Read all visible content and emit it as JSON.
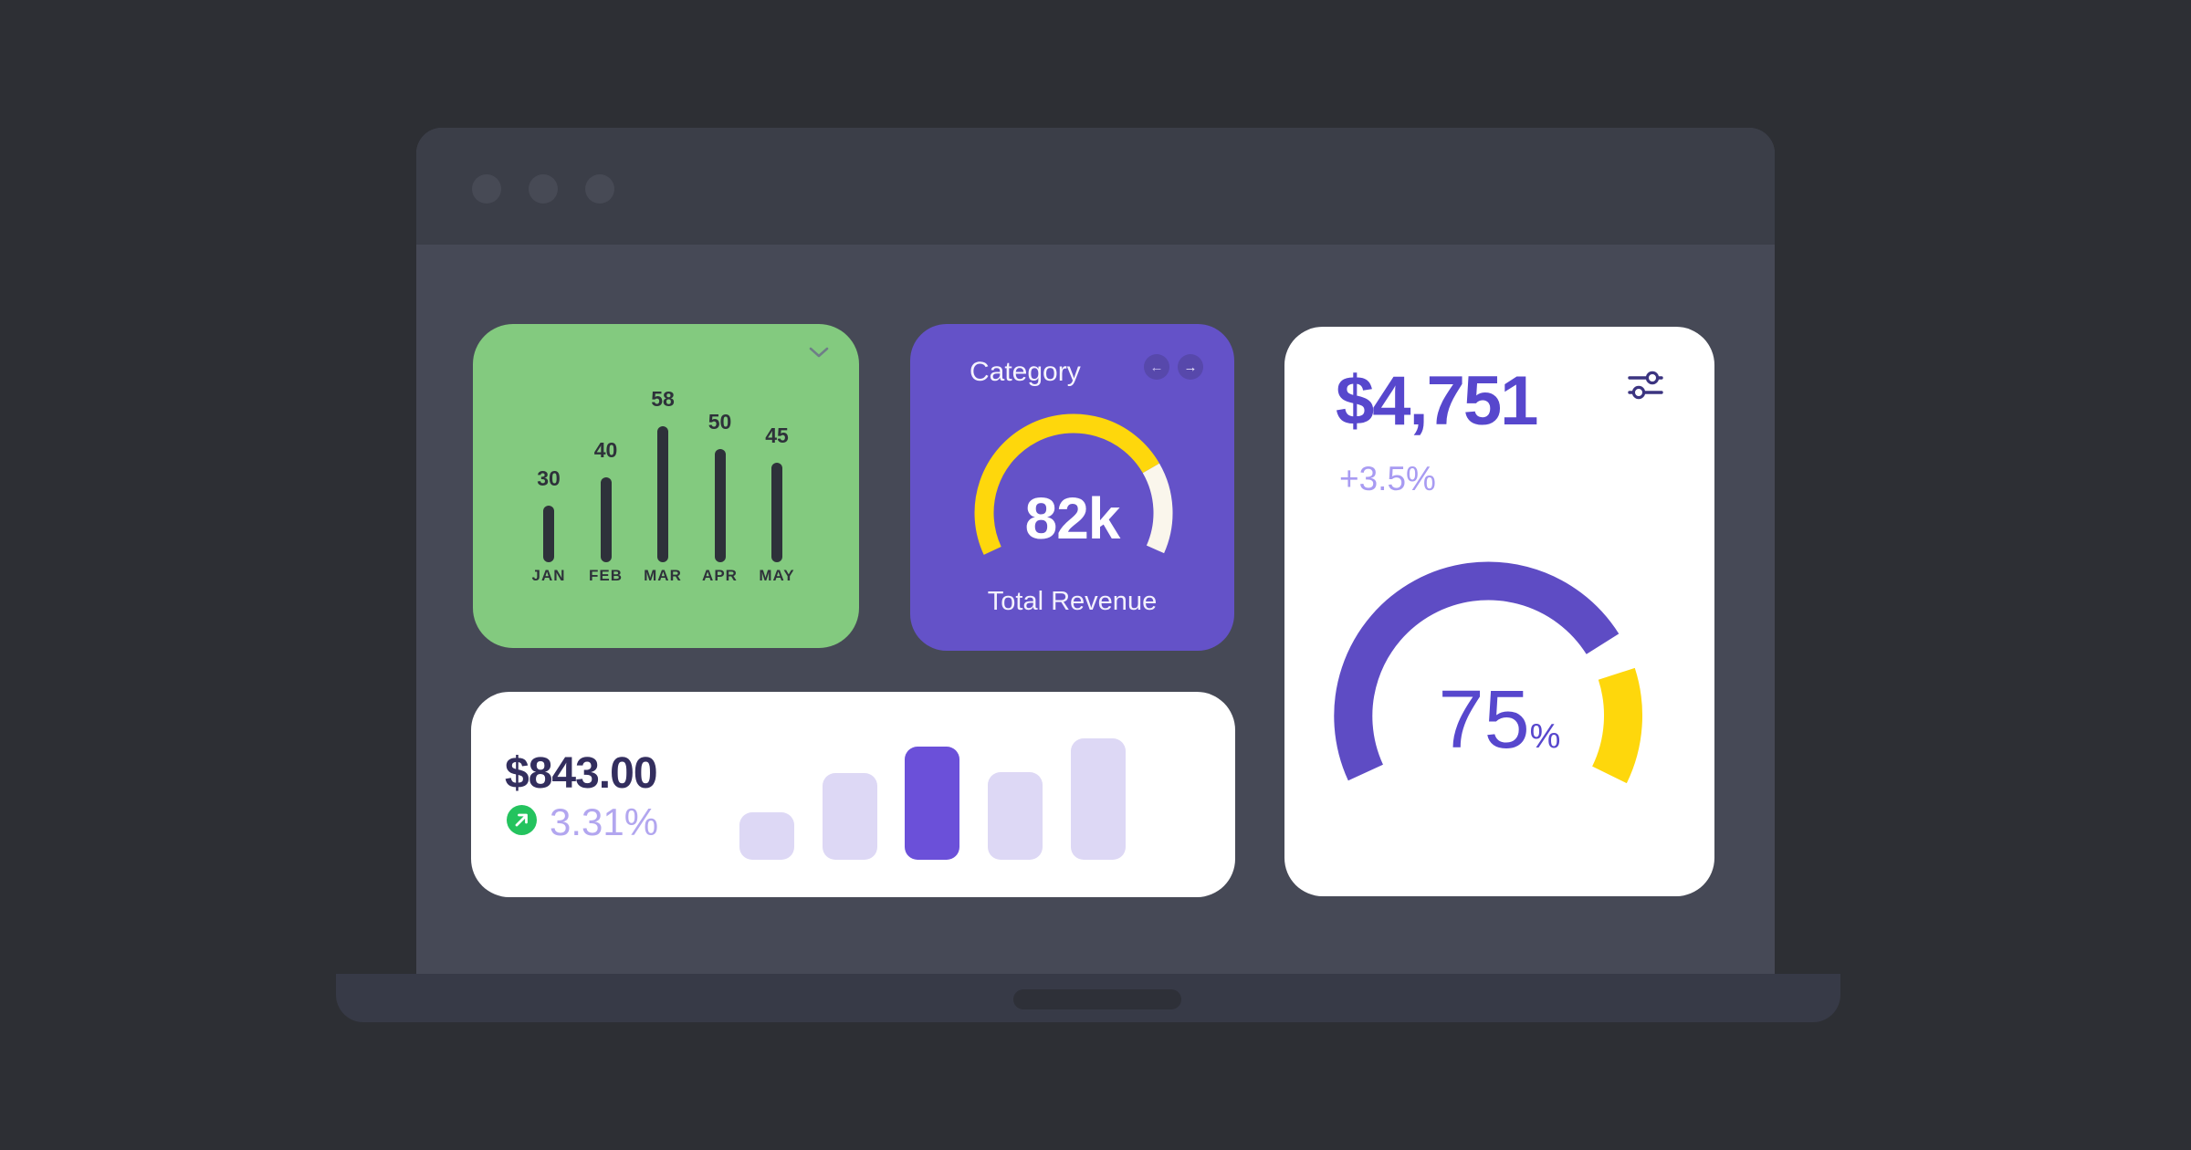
{
  "window": {
    "dots": [
      "window-dot",
      "window-dot",
      "window-dot"
    ]
  },
  "colors": {
    "page_bg": "#2d2f34",
    "screen_body": "#464956",
    "titlebar": "#3b3e48",
    "green_card": "#83ca7f",
    "purple_card": "#6452c8",
    "ink_dark": "#2e313a",
    "accent_purple": "#5747cd",
    "accent_purple_light": "#a89bf2",
    "yellow": "#fed70c",
    "cream": "#faf6ec",
    "green_badge": "#24c35e"
  },
  "cards": {
    "monthly_bars": {
      "chart": {
        "type": "bar",
        "categories": [
          "JAN",
          "FEB",
          "MAR",
          "APR",
          "MAY"
        ],
        "values": [
          30,
          40,
          58,
          50,
          45
        ],
        "bar_color": "#2e313a",
        "grid": false
      }
    },
    "category_gauge": {
      "title": "Category",
      "prev_label": "←",
      "next_label": "→",
      "value": "82k",
      "caption": "Total Revenue",
      "gauge": {
        "type": "gauge",
        "span_degrees": [
          205,
          -24
        ],
        "segments": [
          {
            "from": 205,
            "to": 30,
            "color": "#fed70c"
          },
          {
            "from": 30,
            "to": -24,
            "color": "#faf6ec"
          }
        ]
      }
    },
    "revenue_gauge": {
      "amount": "$4,751",
      "change": "+3.5%",
      "percent": "75",
      "percent_sign": "%",
      "gauge": {
        "type": "gauge",
        "span_degrees": [
          205,
          -26
        ],
        "segments": [
          {
            "from": 205,
            "to": 32,
            "color": "#5e4cc4"
          },
          {
            "from": 18,
            "to": -26,
            "color": "#fed70c"
          }
        ]
      }
    },
    "sales_bars": {
      "amount": "$843.00",
      "change": "3.31%",
      "trend_icon": "arrow-up-right",
      "chart": {
        "type": "bar",
        "values": [
          52,
          95,
          124,
          96,
          133
        ],
        "active_index": 2,
        "base_color": "#ddd8f5",
        "active_color": "#6b50d9"
      }
    }
  }
}
